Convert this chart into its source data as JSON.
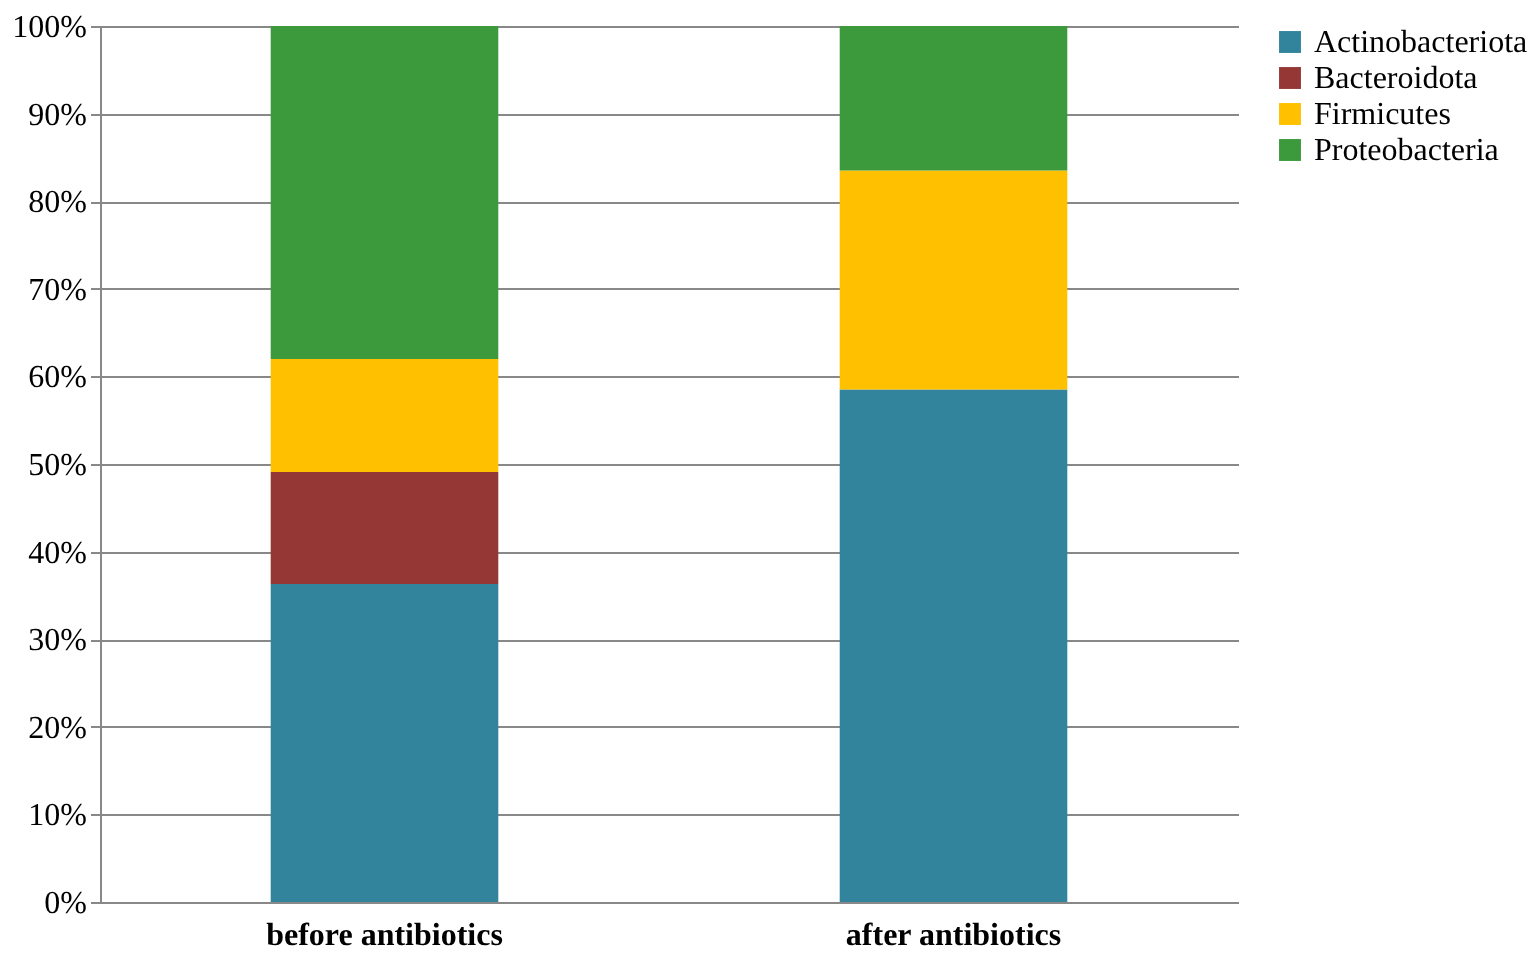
{
  "chart_data": {
    "type": "bar",
    "stacked": true,
    "categories": [
      "before antibiotics",
      "after antibiotics"
    ],
    "series": [
      {
        "name": "Actinobacteriota",
        "color": "#31849b",
        "values": [
          36.3,
          58.5
        ]
      },
      {
        "name": "Bacteroidota",
        "color": "#953735",
        "values": [
          12.8,
          null
        ]
      },
      {
        "name": "Firmicutes",
        "color": "#ffc000",
        "values": [
          12.9,
          25.0
        ]
      },
      {
        "name": "Proteobacteria",
        "color": "#3c9a3c",
        "values": [
          38.0,
          16.5
        ]
      }
    ],
    "ylim": [
      0,
      100
    ],
    "yticks": [
      {
        "value": 0,
        "label": "0%"
      },
      {
        "value": 10,
        "label": "10%"
      },
      {
        "value": 20,
        "label": "20%"
      },
      {
        "value": 30,
        "label": "30%"
      },
      {
        "value": 40,
        "label": "40%"
      },
      {
        "value": 50,
        "label": "50%"
      },
      {
        "value": 60,
        "label": "60%"
      },
      {
        "value": 70,
        "label": "70%"
      },
      {
        "value": 80,
        "label": "80%"
      },
      {
        "value": 90,
        "label": "90%"
      },
      {
        "value": 100,
        "label": "100%"
      }
    ],
    "grid": "y",
    "legend": "right"
  }
}
